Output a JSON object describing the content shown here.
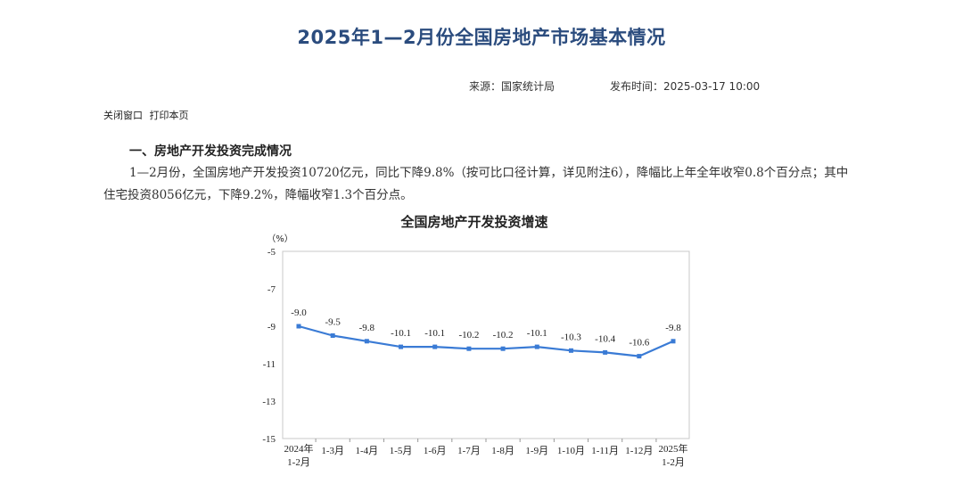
{
  "header": {
    "title": "2025年1—2月份全国房地产市场基本情况",
    "source": "来源：国家统计局",
    "publish_time": "发布时间：2025-03-17 10:00"
  },
  "toolbar": {
    "close_label": "关闭窗口",
    "print_label": "打印本页"
  },
  "section": {
    "heading": "一、房地产开发投资完成情况",
    "paragraph": "1—2月份，全国房地产开发投资10720亿元，同比下降9.8%（按可比口径计算，详见附注6），降幅比上年全年收窄0.8个百分点；其中住宅投资8056亿元，下降9.2%，降幅收窄1.3个百分点。"
  },
  "colors": {
    "title": "#2b4c7e",
    "line": "#3a7bd5"
  },
  "chart_data": {
    "type": "line",
    "title": "全国房地产开发投资增速",
    "ylabel": "（%）",
    "xlabel": "",
    "ylim": [
      -15,
      -5
    ],
    "yticks": [
      -5,
      -7,
      -9,
      -11,
      -13,
      -15
    ],
    "grid": false,
    "categories": [
      [
        "2024年",
        "1-2月"
      ],
      [
        "1-3月"
      ],
      [
        "1-4月"
      ],
      [
        "1-5月"
      ],
      [
        "1-6月"
      ],
      [
        "1-7月"
      ],
      [
        "1-8月"
      ],
      [
        "1-9月"
      ],
      [
        "1-10月"
      ],
      [
        "1-11月"
      ],
      [
        "1-12月"
      ],
      [
        "2025年",
        "1-2月"
      ]
    ],
    "values": [
      -9.0,
      -9.5,
      -9.8,
      -10.1,
      -10.1,
      -10.2,
      -10.2,
      -10.1,
      -10.3,
      -10.4,
      -10.6,
      -9.8
    ],
    "value_labels": [
      "-9.0",
      "-9.5",
      "-9.8",
      "-10.1",
      "-10.1",
      "-10.2",
      "-10.2",
      "-10.1",
      "-10.3",
      "-10.4",
      "-10.6",
      "-9.8"
    ]
  }
}
